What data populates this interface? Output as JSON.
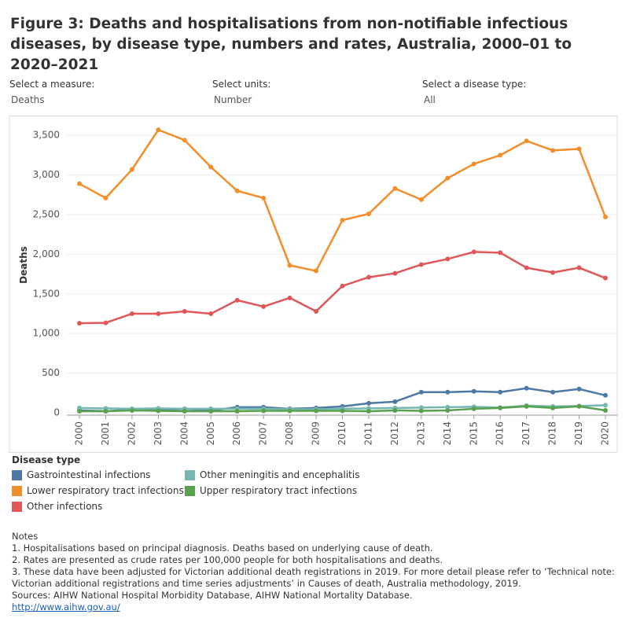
{
  "chart_data": {
    "type": "line",
    "title": "Figure 3: Deaths and hospitalisations from non-notifiable infectious diseases, by disease type, numbers and rates, Australia, 2000–01 to 2020–2021",
    "controls": [
      {
        "label": "Select a measure:",
        "value": "Deaths"
      },
      {
        "label": "Select units:",
        "value": "Number"
      },
      {
        "label": "Select a disease type:",
        "value": "All"
      }
    ],
    "y_label": "Deaths",
    "categories": [
      "2000",
      "2001",
      "2002",
      "2003",
      "2004",
      "2005",
      "2006",
      "2007",
      "2008",
      "2009",
      "2010",
      "2011",
      "2012",
      "2013",
      "2014",
      "2015",
      "2016",
      "2017",
      "2018",
      "2019",
      "2020"
    ],
    "ylim": [
      -30,
      3750
    ],
    "yticks": [
      0,
      {
        "value": 500,
        "label": "500"
      },
      {
        "value": 1000,
        "label": "1,000"
      },
      {
        "value": 1500,
        "label": "1,500"
      },
      {
        "value": 2000,
        "label": "2,000"
      },
      {
        "value": 2500,
        "label": "2,500"
      },
      {
        "value": 3000,
        "label": "3,000"
      },
      {
        "value": 3500,
        "label": "3,500"
      }
    ],
    "legend_title": "Disease type",
    "series": [
      {
        "name": "Gastrointestinal infections",
        "color": "#4e79a7",
        "values": [
          30,
          20,
          40,
          30,
          50,
          30,
          70,
          70,
          50,
          60,
          80,
          120,
          140,
          260,
          260,
          270,
          260,
          310,
          260,
          300,
          220
        ]
      },
      {
        "name": "Lower respiratory tract infections",
        "color": "#f28e2b",
        "values": [
          2890,
          2710,
          3070,
          3570,
          3440,
          3100,
          2800,
          2710,
          1860,
          1790,
          2430,
          2510,
          2830,
          2690,
          2960,
          3140,
          3250,
          3430,
          3310,
          3330,
          2470
        ]
      },
      {
        "name": "Other infections",
        "color": "#e15759",
        "values": [
          1130,
          1135,
          1250,
          1250,
          1280,
          1250,
          1420,
          1340,
          1450,
          1280,
          1600,
          1710,
          1760,
          1870,
          1940,
          2030,
          2020,
          1830,
          1770,
          1830,
          1700
        ]
      },
      {
        "name": "Other meningitis and encephalitis",
        "color": "#76b7b2",
        "values": [
          60,
          55,
          50,
          55,
          50,
          50,
          50,
          50,
          45,
          45,
          50,
          55,
          60,
          65,
          70,
          75,
          65,
          90,
          80,
          85,
          95
        ]
      },
      {
        "name": "Upper respiratory tract infections",
        "color": "#59a14f",
        "values": [
          20,
          20,
          30,
          25,
          20,
          20,
          20,
          25,
          25,
          25,
          25,
          20,
          30,
          25,
          30,
          50,
          60,
          80,
          60,
          80,
          30
        ]
      }
    ],
    "notes": {
      "heading": "Notes",
      "lines": [
        "1. Hospitalisations based on principal diagnosis. Deaths based on underlying cause of death.",
        "2. Rates are presented as crude rates per 100,000 people for both hospitalisations and deaths.",
        "3. These data have been adjusted for Victorian additional death registrations in 2019. For more detail please refer to ‘Technical note: Victorian additional registrations and time series adjustments’ in Causes of death, Australia methodology, 2019."
      ],
      "sources": "Sources: AIHW National Hospital Morbidity Database, AIHW National Mortality Database.",
      "link": "http://www.aihw.gov.au/"
    }
  }
}
